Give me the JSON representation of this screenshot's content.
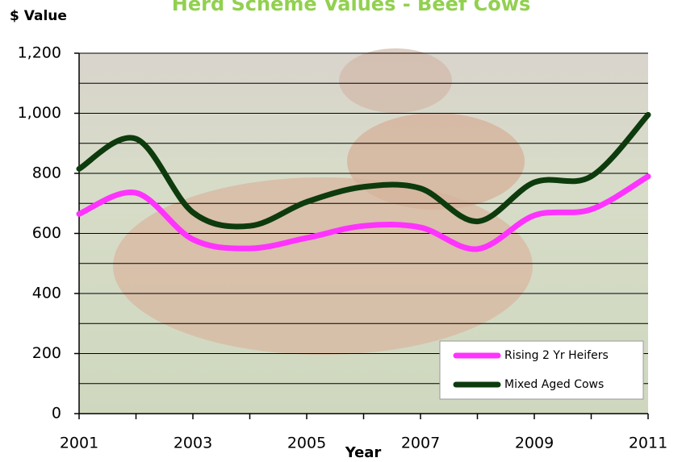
{
  "chart_data": {
    "type": "line",
    "title": "Herd Scheme Values - Beef Cows",
    "y_label": "$ Value",
    "x_label": "Year",
    "x": [
      2001,
      2002,
      2003,
      2004,
      2005,
      2006,
      2007,
      2008,
      2009,
      2010,
      2011
    ],
    "series": [
      {
        "name": "Rising 2 Yr Heifers",
        "color": "#ff33ff",
        "values": [
          665,
          735,
          580,
          550,
          585,
          625,
          620,
          548,
          660,
          680,
          790
        ]
      },
      {
        "name": "Mixed Aged Cows",
        "color": "#0d3b0d",
        "values": [
          815,
          915,
          670,
          625,
          705,
          755,
          750,
          640,
          770,
          790,
          995
        ]
      }
    ],
    "xlim": [
      2001,
      2011
    ],
    "xticks": [
      2001,
      2003,
      2005,
      2007,
      2009,
      2011
    ],
    "minor_xticks": [
      2002,
      2004,
      2006,
      2008,
      2010
    ],
    "ylim": [
      0,
      1200
    ],
    "yticks": [
      0,
      200,
      400,
      600,
      800,
      {
        "value": 1000,
        "label": "1,000"
      },
      {
        "value": 1200,
        "label": "1,200"
      }
    ],
    "minor_yticks": [
      100,
      300,
      500,
      700,
      900,
      1100
    ],
    "grid": true,
    "legend": "lower right",
    "smooth": true
  }
}
